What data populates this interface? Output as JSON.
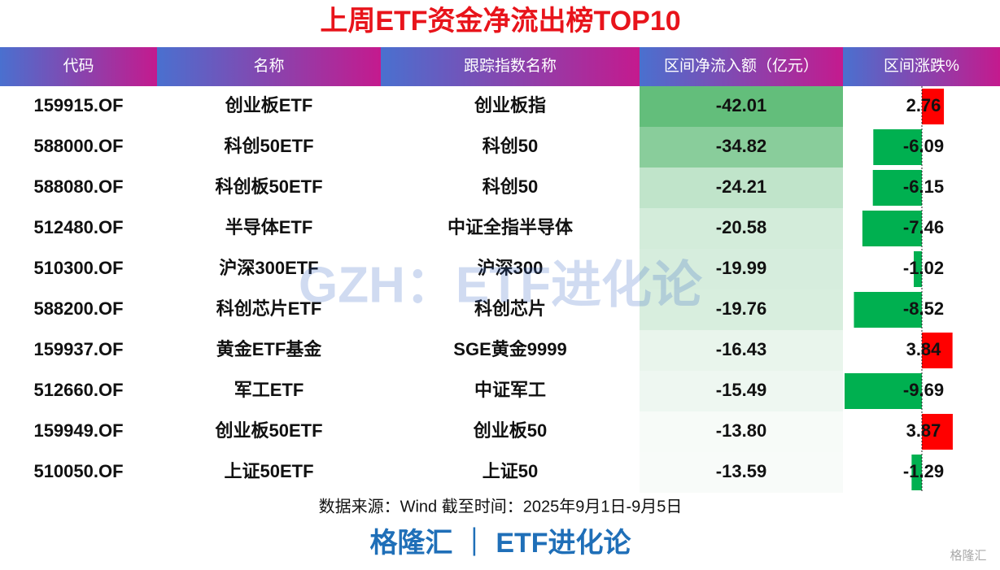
{
  "title": "上周ETF资金净流出榜TOP10",
  "table": {
    "columns": [
      "代码",
      "名称",
      "跟踪指数名称",
      "区间净流入额（亿元）",
      "区间涨跌%"
    ],
    "rows": [
      [
        "159915.OF",
        "创业板ETF",
        "创业板指",
        "-42.01",
        "2.76"
      ],
      [
        "588000.OF",
        "科创50ETF",
        "科创50",
        "-34.82",
        "-6.09"
      ],
      [
        "588080.OF",
        "科创板50ETF",
        "科创50",
        "-24.21",
        "-6.15"
      ],
      [
        "512480.OF",
        "半导体ETF",
        "中证全指半导体",
        "-20.58",
        "-7.46"
      ],
      [
        "510300.OF",
        "沪深300ETF",
        "沪深300",
        "-19.99",
        "-1.02"
      ],
      [
        "588200.OF",
        "科创芯片ETF",
        "科创芯片",
        "-19.76",
        "-8.52"
      ],
      [
        "159937.OF",
        "黄金ETF基金",
        "SGE黄金9999",
        "-16.43",
        "3.84"
      ],
      [
        "512660.OF",
        "军工ETF",
        "中证军工",
        "-15.49",
        "-9.69"
      ],
      [
        "159949.OF",
        "创业板50ETF",
        "创业板50",
        "-13.80",
        "3.87"
      ],
      [
        "510050.OF",
        "上证50ETF",
        "上证50",
        "-13.59",
        "-1.29"
      ]
    ]
  },
  "source": "数据来源：Wind 截至时间：2025年9月1日-9月5日",
  "footer": "格隆汇 ｜ ETF进化论",
  "watermark": "GZH：ETF进化论",
  "logo": "格隆汇"
}
